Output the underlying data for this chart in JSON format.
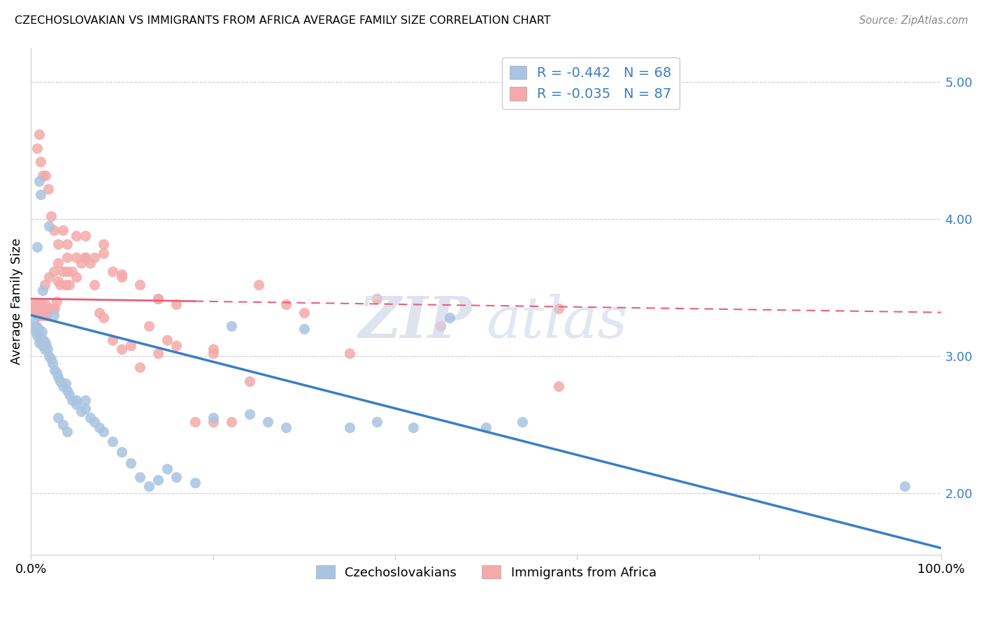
{
  "title": "CZECHOSLOVAKIAN VS IMMIGRANTS FROM AFRICA AVERAGE FAMILY SIZE CORRELATION CHART",
  "source": "Source: ZipAtlas.com",
  "ylabel": "Average Family Size",
  "yticks": [
    2.0,
    3.0,
    4.0,
    5.0
  ],
  "xlim": [
    0.0,
    1.0
  ],
  "ylim": [
    1.55,
    5.25
  ],
  "blue_color": "#A8C4E0",
  "pink_color": "#F4AAAA",
  "blue_line_color": "#3A7EC6",
  "pink_line_color": "#E8607A",
  "legend_label_blue": "R = -0.442   N = 68",
  "legend_label_pink": "R = -0.035   N = 87",
  "bottom_legend_blue": "Czechoslovakians",
  "bottom_legend_pink": "Immigrants from Africa",
  "blue_intercept": 3.3,
  "blue_slope": -1.7,
  "pink_intercept": 3.42,
  "pink_slope": -0.1,
  "blue_x": [
    0.003,
    0.004,
    0.005,
    0.006,
    0.007,
    0.008,
    0.009,
    0.01,
    0.011,
    0.012,
    0.013,
    0.014,
    0.015,
    0.016,
    0.017,
    0.018,
    0.02,
    0.022,
    0.024,
    0.026,
    0.028,
    0.03,
    0.032,
    0.035,
    0.038,
    0.04,
    0.042,
    0.045,
    0.05,
    0.055,
    0.06,
    0.065,
    0.07,
    0.075,
    0.08,
    0.09,
    0.1,
    0.11,
    0.12,
    0.13,
    0.14,
    0.15,
    0.16,
    0.18,
    0.2,
    0.22,
    0.24,
    0.26,
    0.28,
    0.3,
    0.35,
    0.38,
    0.42,
    0.46,
    0.5,
    0.54,
    0.007,
    0.009,
    0.011,
    0.013,
    0.02,
    0.025,
    0.03,
    0.035,
    0.04,
    0.05,
    0.06,
    0.96
  ],
  "blue_y": [
    3.25,
    3.2,
    3.18,
    3.22,
    3.15,
    3.2,
    3.1,
    3.15,
    3.12,
    3.18,
    3.08,
    3.12,
    3.05,
    3.1,
    3.08,
    3.05,
    3.0,
    2.98,
    2.95,
    2.9,
    2.88,
    2.85,
    2.82,
    2.78,
    2.8,
    2.75,
    2.72,
    2.68,
    2.65,
    2.6,
    2.68,
    2.55,
    2.52,
    2.48,
    2.45,
    2.38,
    2.3,
    2.22,
    2.12,
    2.05,
    2.1,
    2.18,
    2.12,
    2.08,
    2.55,
    3.22,
    2.58,
    2.52,
    2.48,
    3.2,
    2.48,
    2.52,
    2.48,
    3.28,
    2.48,
    2.52,
    3.8,
    4.28,
    4.18,
    3.48,
    3.95,
    3.3,
    2.55,
    2.5,
    2.45,
    2.68,
    2.62,
    2.05
  ],
  "pink_x": [
    0.003,
    0.004,
    0.005,
    0.006,
    0.007,
    0.008,
    0.009,
    0.01,
    0.011,
    0.012,
    0.013,
    0.014,
    0.015,
    0.016,
    0.017,
    0.018,
    0.02,
    0.022,
    0.024,
    0.026,
    0.028,
    0.03,
    0.032,
    0.035,
    0.038,
    0.04,
    0.042,
    0.045,
    0.05,
    0.055,
    0.06,
    0.065,
    0.07,
    0.075,
    0.08,
    0.09,
    0.1,
    0.11,
    0.12,
    0.13,
    0.14,
    0.15,
    0.16,
    0.18,
    0.2,
    0.22,
    0.25,
    0.28,
    0.3,
    0.35,
    0.007,
    0.009,
    0.011,
    0.013,
    0.016,
    0.019,
    0.022,
    0.025,
    0.03,
    0.035,
    0.04,
    0.05,
    0.06,
    0.07,
    0.08,
    0.09,
    0.1,
    0.12,
    0.14,
    0.16,
    0.2,
    0.24,
    0.015,
    0.02,
    0.025,
    0.03,
    0.04,
    0.05,
    0.06,
    0.08,
    0.1,
    0.14,
    0.2,
    0.58,
    0.58,
    0.45,
    0.38
  ],
  "pink_y": [
    3.38,
    3.35,
    3.32,
    3.38,
    3.35,
    3.3,
    3.38,
    3.35,
    3.3,
    3.38,
    3.35,
    3.3,
    3.35,
    3.38,
    3.3,
    3.35,
    3.35,
    3.35,
    3.35,
    3.35,
    3.4,
    3.55,
    3.52,
    3.62,
    3.52,
    3.62,
    3.52,
    3.62,
    3.58,
    3.68,
    3.72,
    3.68,
    3.52,
    3.32,
    3.28,
    3.12,
    3.05,
    3.08,
    2.92,
    3.22,
    3.02,
    3.12,
    3.08,
    2.52,
    2.52,
    2.52,
    3.52,
    3.38,
    3.32,
    3.02,
    4.52,
    4.62,
    4.42,
    4.32,
    4.32,
    4.22,
    4.02,
    3.92,
    3.82,
    3.92,
    3.82,
    3.88,
    3.88,
    3.72,
    3.82,
    3.62,
    3.58,
    3.52,
    3.42,
    3.38,
    3.02,
    2.82,
    3.52,
    3.58,
    3.62,
    3.68,
    3.72,
    3.72,
    3.72,
    3.75,
    3.6,
    3.42,
    3.05,
    2.78,
    3.35,
    3.22,
    3.42
  ]
}
